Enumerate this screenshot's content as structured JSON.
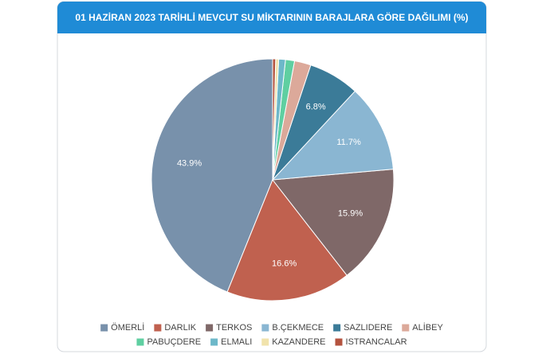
{
  "chart_data": {
    "type": "pie",
    "title": "01 HAZİRAN 2023 TARİHLİ MEVCUT SU MİKTARININ BARAJLARA GÖRE DAĞILIMI (%)",
    "categories": [
      "ÖMERLİ",
      "DARLIK",
      "TERKOS",
      "B.ÇEKMECE",
      "SAZLIDERE",
      "ALİBEY",
      "PABUÇDERE",
      "ELMALI",
      "KAZANDERE",
      "ISTRANCALAR"
    ],
    "values": [
      43.9,
      16.6,
      15.9,
      11.7,
      6.8,
      2.2,
      1.2,
      0.9,
      0.4,
      0.4
    ],
    "value_labels": [
      "43.9%",
      "16.6%",
      "15.9%",
      "11.7%",
      "6.8%",
      null,
      null,
      null,
      null,
      null
    ],
    "colors": [
      "#7891ab",
      "#c0614f",
      "#7f6868",
      "#8ab6d2",
      "#3b7b98",
      "#dca99a",
      "#5fcfa1",
      "#6db8c9",
      "#f1e3ac",
      "#b4533f"
    ]
  }
}
